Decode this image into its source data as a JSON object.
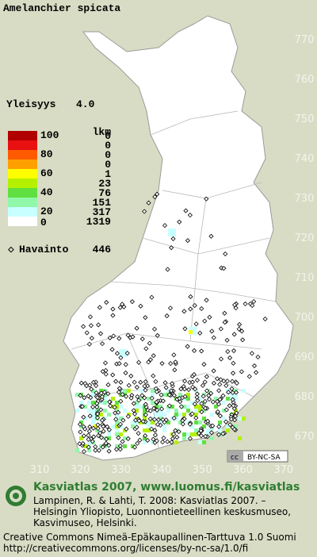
{
  "title": "Amelanchier spicata",
  "frequency": {
    "label": "Yleisyys",
    "value": "4.0"
  },
  "legend": {
    "unit": "lkm",
    "scale": [
      "100",
      "80",
      "60",
      "40",
      "20",
      "0"
    ],
    "rows": [
      {
        "color": "#b00000",
        "count": "0"
      },
      {
        "color": "#e81010",
        "count": "0"
      },
      {
        "color": "#ff5a00",
        "count": "0"
      },
      {
        "color": "#ffa000",
        "count": "0"
      },
      {
        "color": "#ffff00",
        "count": "1"
      },
      {
        "color": "#b4f000",
        "count": "23"
      },
      {
        "color": "#60e040",
        "count": "76"
      },
      {
        "color": "#90f8a8",
        "count": "151"
      },
      {
        "color": "#c8ffff",
        "count": "317"
      },
      {
        "color": "#ffffff",
        "count": "1319"
      }
    ]
  },
  "observations": {
    "label": "Havainto",
    "count": "446"
  },
  "grid_x": [
    "310",
    "320",
    "330",
    "340",
    "350",
    "360",
    "370"
  ],
  "grid_y": [
    "770",
    "760",
    "750",
    "740",
    "730",
    "720",
    "710",
    "700",
    "690",
    "680",
    "670"
  ],
  "license_badge": "BY-NC-SA",
  "footer": {
    "title": "Kasviatlas 2007, www.luomus.fi/kasviatlas",
    "citation": [
      "Lampinen, R. & Lahti, T. 2008: Kasviatlas 2007. –",
      "Helsingin Yliopisto, Luonnontieteellinen keskusmuseo,",
      "Kasvimuseo, Helsinki."
    ],
    "license": [
      "Creative Commons Nimeä-Epäkaupallinen-Tarttuva 1.0 Suomi",
      "http://creativecommons.org/licenses/by-nc-sa/1.0/fi"
    ]
  }
}
